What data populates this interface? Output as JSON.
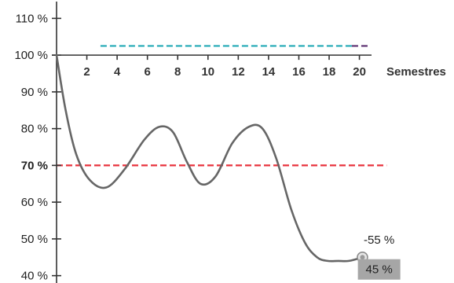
{
  "chart_data": {
    "type": "line",
    "title": "",
    "xlabel": "Semestres",
    "ylabel": "",
    "xlim": [
      0,
      21.5
    ],
    "ylim": [
      38,
      115
    ],
    "grid": false,
    "x_ticks": [
      2,
      4,
      6,
      8,
      10,
      12,
      14,
      16,
      18,
      20
    ],
    "x_tick_labels": [
      "2",
      "4",
      "6",
      "8",
      "10",
      "12",
      "14",
      "16",
      "18",
      "20"
    ],
    "y_ticks": [
      40,
      50,
      60,
      70,
      80,
      90,
      100,
      110
    ],
    "y_tick_labels": [
      "40 %",
      "50 %",
      "60 %",
      "70 %",
      "80 %",
      "90 %",
      "100 %",
      "110 %"
    ],
    "highlight_tick": "70 %",
    "series": [
      {
        "color": "#666666",
        "x": [
          0,
          0.6,
          1.3,
          2.2,
          3.3,
          4.5,
          5.8,
          6.8,
          7.7,
          8.6,
          9.5,
          10.5,
          11.6,
          12.7,
          13.6,
          14.5,
          15.5,
          16.4,
          17.2,
          17.9,
          18.6,
          19.3,
          20.2
        ],
        "y": [
          100,
          85,
          73,
          66,
          64,
          69,
          77,
          80.5,
          79,
          71,
          65,
          67,
          76,
          80.5,
          80,
          72,
          58,
          49,
          45,
          44,
          44,
          44,
          45
        ]
      }
    ],
    "reference_lines": [
      {
        "y": 70,
        "color": "#e8323c",
        "x_from": 0,
        "x_to": 21.8
      },
      {
        "y": 102.5,
        "color": "#21a9b5",
        "x_from": 2.9,
        "x_to": 19.5
      },
      {
        "y": 102.5,
        "color": "#5a2d6f",
        "x_from": 19.5,
        "x_to": 20.7
      }
    ],
    "end_marker": {
      "x": 20.2,
      "y": 45
    },
    "annotations": [
      {
        "text": "-55 %",
        "x": 21.3,
        "y": 49.8
      },
      {
        "text": "45 %",
        "x": 21.3,
        "y": 41.7,
        "box_color": "#a6a6a6"
      }
    ],
    "colors": {
      "axis": "#333333",
      "highlight": "#e8323c"
    }
  }
}
